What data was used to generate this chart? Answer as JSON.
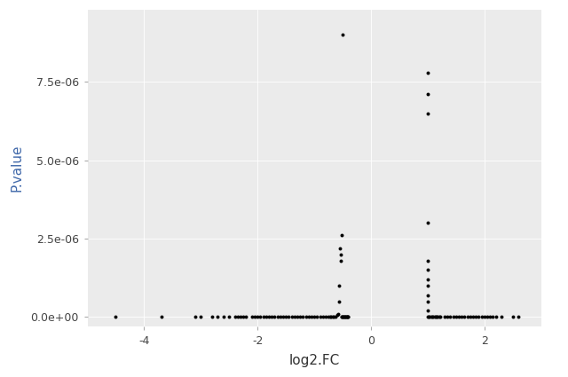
{
  "title": "",
  "xlabel": "log2.FC",
  "ylabel": "P.value",
  "panel_background": "#EBEBEB",
  "figure_background": "#FFFFFF",
  "grid_color": "#FFFFFF",
  "point_color": "#000000",
  "point_size": 8,
  "xlim": [
    -5.0,
    3.0
  ],
  "ylim": [
    -3e-07,
    9.8e-06
  ],
  "x_ticks": [
    -4,
    -2,
    0,
    2
  ],
  "y_ticks": [
    0.0,
    2.5e-06,
    5e-06,
    7.5e-06
  ],
  "xlabel_color": "#333333",
  "ylabel_color": "#4169AA",
  "tick_label_color": "#444444",
  "points": [
    [
      -4.5,
      0.0
    ],
    [
      -3.7,
      0.0
    ],
    [
      -3.1,
      0.0
    ],
    [
      -3.0,
      0.0
    ],
    [
      -2.8,
      0.0
    ],
    [
      -2.7,
      0.0
    ],
    [
      -2.6,
      0.0
    ],
    [
      -2.5,
      0.0
    ],
    [
      -2.4,
      0.0
    ],
    [
      -2.35,
      0.0
    ],
    [
      -2.3,
      0.0
    ],
    [
      -2.25,
      0.0
    ],
    [
      -2.2,
      0.0
    ],
    [
      -2.1,
      0.0
    ],
    [
      -2.05,
      0.0
    ],
    [
      -2.0,
      0.0
    ],
    [
      -1.95,
      0.0
    ],
    [
      -1.9,
      0.0
    ],
    [
      -1.85,
      0.0
    ],
    [
      -1.8,
      0.0
    ],
    [
      -1.75,
      0.0
    ],
    [
      -1.7,
      0.0
    ],
    [
      -1.65,
      0.0
    ],
    [
      -1.6,
      0.0
    ],
    [
      -1.55,
      0.0
    ],
    [
      -1.5,
      0.0
    ],
    [
      -1.45,
      0.0
    ],
    [
      -1.4,
      0.0
    ],
    [
      -1.35,
      0.0
    ],
    [
      -1.3,
      0.0
    ],
    [
      -1.25,
      0.0
    ],
    [
      -1.2,
      0.0
    ],
    [
      -1.15,
      0.0
    ],
    [
      -1.1,
      0.0
    ],
    [
      -1.05,
      0.0
    ],
    [
      -1.0,
      0.0
    ],
    [
      -0.95,
      0.0
    ],
    [
      -0.9,
      0.0
    ],
    [
      -0.85,
      0.0
    ],
    [
      -0.8,
      0.0
    ],
    [
      -0.75,
      0.0
    ],
    [
      -0.72,
      0.0
    ],
    [
      -0.7,
      0.0
    ],
    [
      -0.68,
      0.0
    ],
    [
      -0.65,
      0.0
    ],
    [
      -0.63,
      0.0
    ],
    [
      -0.6,
      5e-08
    ],
    [
      -0.58,
      8e-08
    ],
    [
      -0.57,
      1e-06
    ],
    [
      -0.56,
      5e-07
    ],
    [
      -0.55,
      2.2e-06
    ],
    [
      -0.54,
      2e-06
    ],
    [
      -0.53,
      1.8e-06
    ],
    [
      -0.52,
      2.6e-06
    ],
    [
      -0.52,
      0.0
    ],
    [
      -0.51,
      0.0
    ],
    [
      -0.5,
      0.0
    ],
    [
      -0.49,
      0.0
    ],
    [
      -0.48,
      0.0
    ],
    [
      -0.47,
      0.0
    ],
    [
      -0.46,
      0.0
    ],
    [
      -0.45,
      0.0
    ],
    [
      -0.44,
      0.0
    ],
    [
      -0.43,
      0.0
    ],
    [
      -0.42,
      0.0
    ],
    [
      -0.41,
      0.0
    ],
    [
      -0.4,
      0.0
    ],
    [
      -0.5,
      9e-06
    ],
    [
      1.0,
      7.8e-06
    ],
    [
      1.0,
      7.1e-06
    ],
    [
      1.0,
      6.5e-06
    ],
    [
      1.0,
      3e-06
    ],
    [
      1.0,
      1.8e-06
    ],
    [
      1.0,
      1.5e-06
    ],
    [
      1.0,
      1.2e-06
    ],
    [
      1.0,
      1e-06
    ],
    [
      1.0,
      7e-07
    ],
    [
      1.0,
      5e-07
    ],
    [
      1.0,
      2e-07
    ],
    [
      1.0,
      0.0
    ],
    [
      1.02,
      0.0
    ],
    [
      1.04,
      0.0
    ],
    [
      1.06,
      0.0
    ],
    [
      1.08,
      0.0
    ],
    [
      1.1,
      0.0
    ],
    [
      1.12,
      0.0
    ],
    [
      1.14,
      0.0
    ],
    [
      1.16,
      0.0
    ],
    [
      1.18,
      0.0
    ],
    [
      1.2,
      0.0
    ],
    [
      1.22,
      0.0
    ],
    [
      1.3,
      0.0
    ],
    [
      1.35,
      0.0
    ],
    [
      1.4,
      0.0
    ],
    [
      1.45,
      0.0
    ],
    [
      1.5,
      0.0
    ],
    [
      1.55,
      0.0
    ],
    [
      1.6,
      0.0
    ],
    [
      1.65,
      0.0
    ],
    [
      1.7,
      0.0
    ],
    [
      1.75,
      0.0
    ],
    [
      1.8,
      0.0
    ],
    [
      1.85,
      0.0
    ],
    [
      1.9,
      0.0
    ],
    [
      1.95,
      0.0
    ],
    [
      2.0,
      0.0
    ],
    [
      2.05,
      0.0
    ],
    [
      2.1,
      0.0
    ],
    [
      2.15,
      0.0
    ],
    [
      2.2,
      0.0
    ],
    [
      2.3,
      0.0
    ],
    [
      2.5,
      0.0
    ],
    [
      2.6,
      0.0
    ]
  ]
}
